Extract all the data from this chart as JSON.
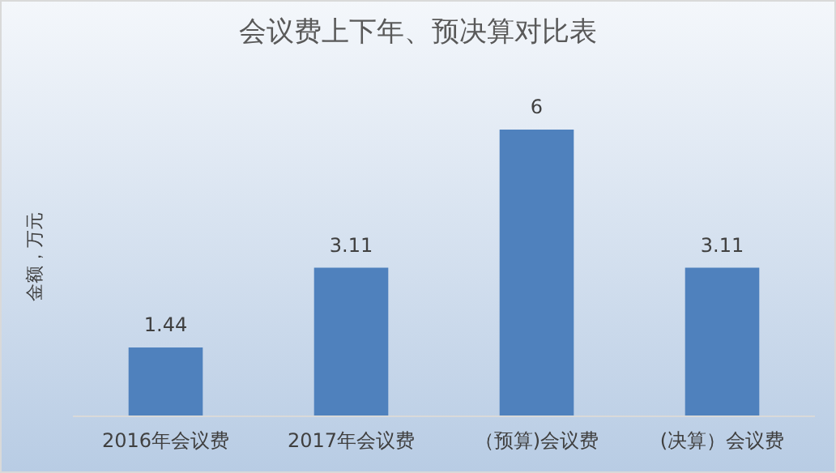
{
  "chart_data": {
    "type": "bar",
    "title": "会议费上下年、预决算对比表",
    "ylabel": "金额，万元",
    "categories": [
      "2016年会议费",
      "2017年会议费",
      "（预算)会议费",
      "(决算）会议费"
    ],
    "values": [
      1.44,
      3.11,
      6,
      3.11
    ],
    "color": "#4f81bd",
    "data_labels": true
  }
}
